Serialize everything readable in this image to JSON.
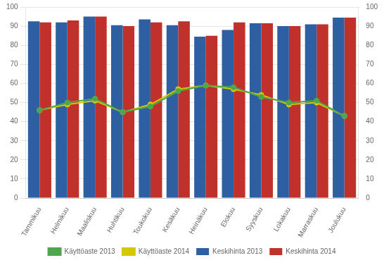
{
  "chart_data": {
    "type": "bar",
    "categories": [
      "Tammikuu",
      "Helmikuu",
      "Maaliskuu",
      "Huhtikuu",
      "Toukokuu",
      "Kesäkuu",
      "Heinäkuu",
      "Elokuu",
      "Syyskuu",
      "Lokakuu",
      "Marraskuu",
      "Joulukuu"
    ],
    "series": [
      {
        "name": "Keskihinta 2013",
        "type": "bar",
        "color": "#2E5FA3",
        "values": [
          92.5,
          92.0,
          95.0,
          90.5,
          93.5,
          90.5,
          84.5,
          88.0,
          91.5,
          90.0,
          91.0,
          94.5
        ]
      },
      {
        "name": "Keskihinta 2014",
        "type": "bar",
        "color": "#C0312C",
        "values": [
          92.0,
          93.0,
          95.0,
          90.0,
          92.0,
          92.5,
          85.0,
          92.0,
          91.5,
          90.0,
          91.0,
          94.5
        ]
      },
      {
        "name": "Käyttöaste 2013",
        "type": "line",
        "color": "#4EA64E",
        "marker": "circle",
        "values": [
          46,
          50,
          52,
          45,
          48,
          56,
          59,
          58,
          53,
          50,
          51,
          43
        ]
      },
      {
        "name": "Käyttöaste 2014",
        "type": "line",
        "color": "#D4C800",
        "marker": "circle",
        "values": [
          46,
          49,
          51,
          45,
          49,
          57,
          59,
          57,
          54,
          49,
          50,
          43
        ]
      }
    ],
    "ylim": [
      0,
      100
    ],
    "yticks": [
      0,
      10,
      20,
      30,
      40,
      50,
      60,
      70,
      80,
      90,
      100
    ],
    "y2lim": [
      0,
      100
    ],
    "y2ticks": [
      0,
      10,
      20,
      30,
      40,
      50,
      60,
      70,
      80,
      90,
      100
    ],
    "grid": true,
    "legend": "bottom"
  }
}
